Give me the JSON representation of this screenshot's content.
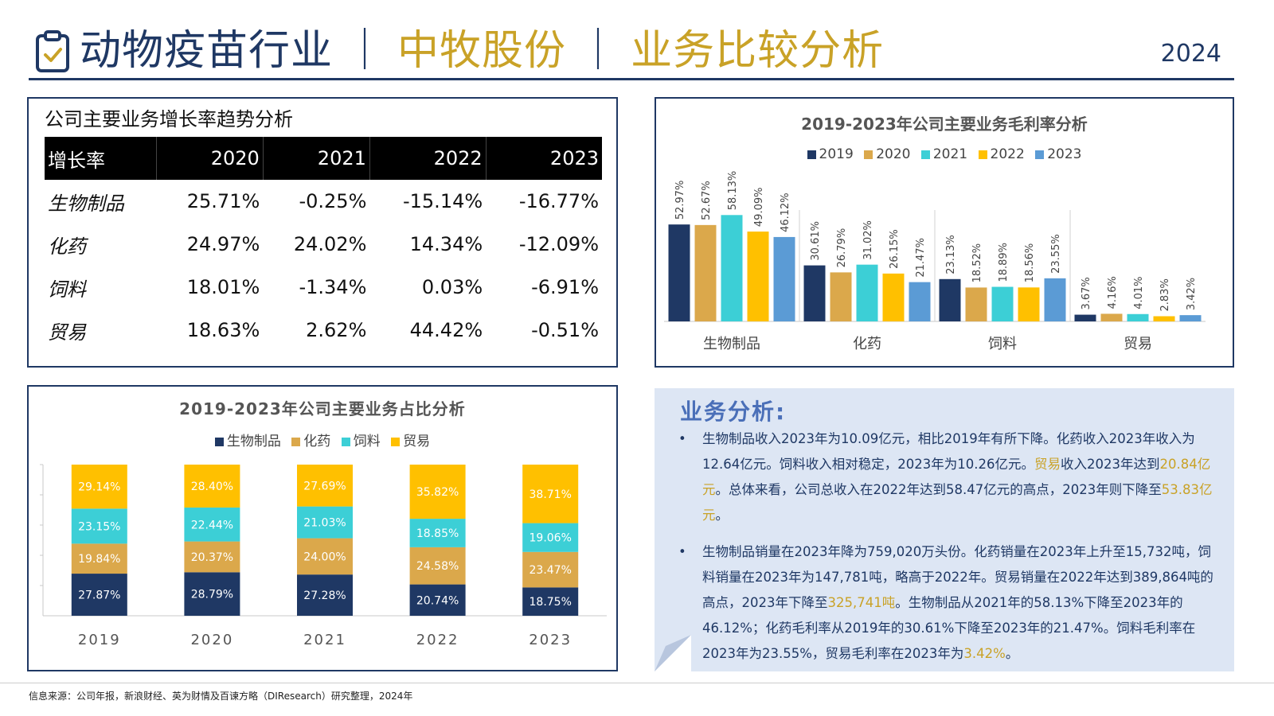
{
  "header": {
    "title_part1": "动物疫苗行业",
    "separator": "｜",
    "title_part2": "中牧股份",
    "title_part3": "业务比较分析",
    "year": "2024",
    "clipboard_icon": "clipboard-check-icon"
  },
  "growth_table": {
    "title": "公司主要业务增长率趋势分析",
    "headers": [
      "增长率",
      "2020",
      "2021",
      "2022",
      "2023"
    ],
    "rows": [
      [
        "生物制品",
        "25.71%",
        "-0.25%",
        "-15.14%",
        "-16.77%"
      ],
      [
        "化药",
        "24.97%",
        "24.02%",
        "14.34%",
        "-12.09%"
      ],
      [
        "饲料",
        "18.01%",
        "-1.34%",
        "0.03%",
        "-6.91%"
      ],
      [
        "贸易",
        "18.63%",
        "2.62%",
        "44.42%",
        "-0.51%"
      ]
    ]
  },
  "colors": {
    "navy": "#1f3864",
    "gold": "#c9a227",
    "y2019": "#1f3864",
    "y2020": "#dba84b",
    "y2021": "#3ccfd6",
    "y2022": "#ffc000",
    "y2023": "#5b9bd5"
  },
  "chart_data": [
    {
      "type": "bar",
      "title": "2019-2023年公司主要业务毛利率分析",
      "categories": [
        "生物制品",
        "化药",
        "饲料",
        "贸易"
      ],
      "series": [
        {
          "name": "2019",
          "values": [
            52.97,
            30.61,
            23.13,
            3.67
          ],
          "labels": [
            "52.97%",
            "30.61%",
            "23.13%",
            "3.67%"
          ]
        },
        {
          "name": "2020",
          "values": [
            52.67,
            26.79,
            18.52,
            4.16
          ],
          "labels": [
            "52.67%",
            "26.79%",
            "18.52%",
            "4.16%"
          ]
        },
        {
          "name": "2021",
          "values": [
            58.13,
            31.02,
            18.89,
            4.01
          ],
          "labels": [
            "58.13%",
            "31.02%",
            "18.89%",
            "4.01%"
          ]
        },
        {
          "name": "2022",
          "values": [
            49.09,
            26.15,
            18.56,
            2.83
          ],
          "labels": [
            "49.09%",
            "26.15%",
            "18.56%",
            "2.83%"
          ]
        },
        {
          "name": "2023",
          "values": [
            46.12,
            21.47,
            23.55,
            3.42
          ],
          "labels": [
            "46.12%",
            "21.47%",
            "23.55%",
            "3.42%"
          ]
        }
      ],
      "ylim": [
        0,
        80
      ],
      "grid": false,
      "legend": "top"
    },
    {
      "type": "bar",
      "stacked": true,
      "title": "2019-2023年公司主要业务占比分析",
      "categories": [
        "2019",
        "2020",
        "2021",
        "2022",
        "2023"
      ],
      "series": [
        {
          "name": "生物制品",
          "values": [
            27.87,
            28.79,
            27.28,
            20.74,
            18.75
          ],
          "labels": [
            "27.87%",
            "28.79%",
            "27.28%",
            "20.74%",
            "18.75%"
          ]
        },
        {
          "name": "化药",
          "values": [
            19.84,
            20.37,
            24.0,
            24.58,
            23.47
          ],
          "labels": [
            "19.84%",
            "20.37%",
            "24.00%",
            "24.58%",
            "23.47%"
          ]
        },
        {
          "name": "饲料",
          "values": [
            23.15,
            22.44,
            21.03,
            18.85,
            19.06
          ],
          "labels": [
            "23.15%",
            "22.44%",
            "21.03%",
            "18.85%",
            "19.06%"
          ]
        },
        {
          "name": "贸易",
          "values": [
            29.14,
            28.4,
            27.69,
            35.82,
            38.71
          ],
          "labels": [
            "29.14%",
            "28.40%",
            "27.69%",
            "35.82%",
            "38.71%"
          ]
        }
      ],
      "ylim": [
        0,
        100
      ],
      "grid": false,
      "legend": "top"
    }
  ],
  "analysis": {
    "title": "业务分析:",
    "p1": {
      "a": "生物制品收入2023年为10.09亿元，相比2019年有所下降。化药收入2023年收入为12.64亿元。饲料收入相对稳定，2023年为10.26亿元。",
      "b": "贸易",
      "c": "收入2023年达到",
      "d": "20.84亿元",
      "e": "。总体来看，公司总收入在2022年达到58.47亿元的高点，2023年则下降至",
      "f": "53.83亿元",
      "g": "。"
    },
    "p2": {
      "a": "生物制品销量在2023年降为759,020万头份。化药销量在2023年上升至15,732吨，饲料销量在2023年为147,781吨，略高于2022年。贸易销量在2022年达到389,864吨的高点，2023年下降至",
      "b": "325,741吨",
      "c": "。生物制品从2021年的58.13%下降至2023年的46.12%；化药毛利率从2019年的30.61%下降至2023年的21.47%。饲料毛利率在2023年为23.55%，贸易毛利率在2023年为",
      "d": "3.42%",
      "e": "。"
    }
  },
  "footer": "信息来源：公司年报，新浪财经、英为财情及百谏方略（DIResearch）研究整理，2024年"
}
